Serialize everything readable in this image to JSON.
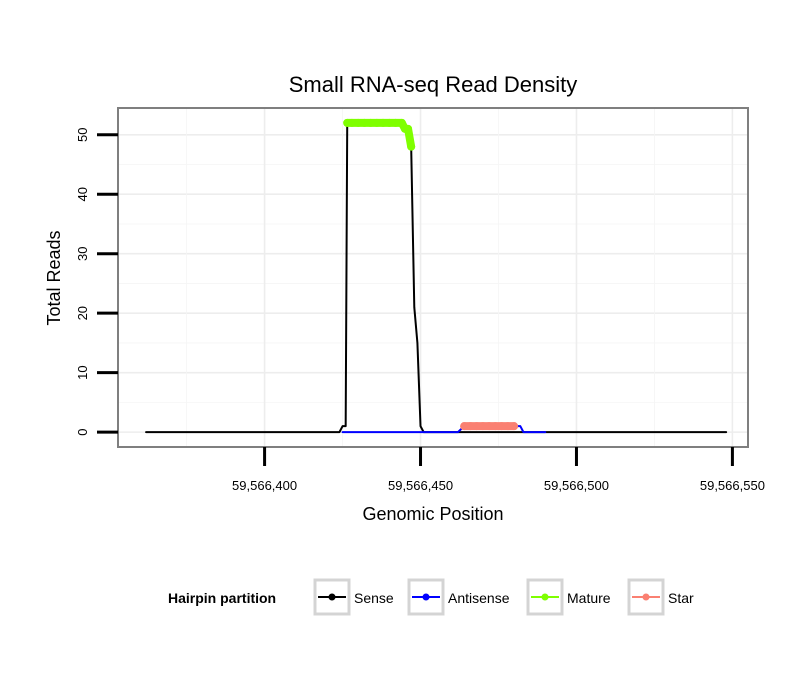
{
  "chart_data": {
    "type": "line",
    "title": "Small RNA-seq Read Density",
    "xlabel": "Genomic Position",
    "ylabel": "Total Reads",
    "xlim": [
      59566353,
      59566555
    ],
    "ylim": [
      -2.5,
      54.5
    ],
    "x_ticks": [
      59566400,
      59566450,
      59566500,
      59566550
    ],
    "x_tick_labels": [
      "59,566,400",
      "59,566,450",
      "59,566,500",
      "59,566,550"
    ],
    "y_ticks": [
      0,
      10,
      20,
      30,
      40,
      50
    ],
    "y_tick_labels": [
      "0",
      "10",
      "20",
      "30",
      "40",
      "50"
    ],
    "grid": true,
    "legend": {
      "title": "Hairpin partition",
      "position": "bottom",
      "entries": [
        {
          "name": "Sense",
          "color": "#000000"
        },
        {
          "name": "Antisense",
          "color": "#0000ff"
        },
        {
          "name": "Mature",
          "color": "#7fff00"
        },
        {
          "name": "Star",
          "color": "#fa8072"
        }
      ]
    },
    "series": [
      {
        "name": "Sense",
        "color": "#000000",
        "style": "line",
        "points": [
          [
            59566362,
            0
          ],
          [
            59566424,
            0
          ],
          [
            59566425,
            1
          ],
          [
            59566426,
            1
          ],
          [
            59566426.5,
            52
          ],
          [
            59566444,
            52
          ],
          [
            59566446,
            51
          ],
          [
            59566447,
            48
          ],
          [
            59566448,
            21
          ],
          [
            59566449,
            15
          ],
          [
            59566450,
            1
          ],
          [
            59566451,
            0
          ],
          [
            59566548,
            0
          ]
        ]
      },
      {
        "name": "Antisense",
        "color": "#0000ff",
        "style": "line",
        "points": [
          [
            59566425,
            0
          ],
          [
            59566450,
            0
          ],
          [
            59566462,
            0
          ],
          [
            59566464,
            1
          ],
          [
            59566481,
            1
          ],
          [
            59566482,
            1
          ],
          [
            59566483,
            0
          ],
          [
            59566490,
            0
          ]
        ]
      },
      {
        "name": "Mature",
        "color": "#7fff00",
        "style": "line-points",
        "points": [
          [
            59566426.5,
            52
          ],
          [
            59566428,
            52
          ],
          [
            59566430,
            52
          ],
          [
            59566432,
            52
          ],
          [
            59566434,
            52
          ],
          [
            59566436,
            52
          ],
          [
            59566438,
            52
          ],
          [
            59566440,
            52
          ],
          [
            59566442,
            52
          ],
          [
            59566444,
            52
          ],
          [
            59566445,
            51
          ],
          [
            59566446,
            51
          ],
          [
            59566447,
            48
          ]
        ]
      },
      {
        "name": "Star",
        "color": "#fa8072",
        "style": "line-points",
        "points": [
          [
            59566464,
            1
          ],
          [
            59566466,
            1
          ],
          [
            59566468,
            1
          ],
          [
            59566470,
            1
          ],
          [
            59566472,
            1
          ],
          [
            59566474,
            1
          ],
          [
            59566476,
            1
          ],
          [
            59566478,
            1
          ],
          [
            59566480,
            1
          ]
        ]
      }
    ]
  }
}
